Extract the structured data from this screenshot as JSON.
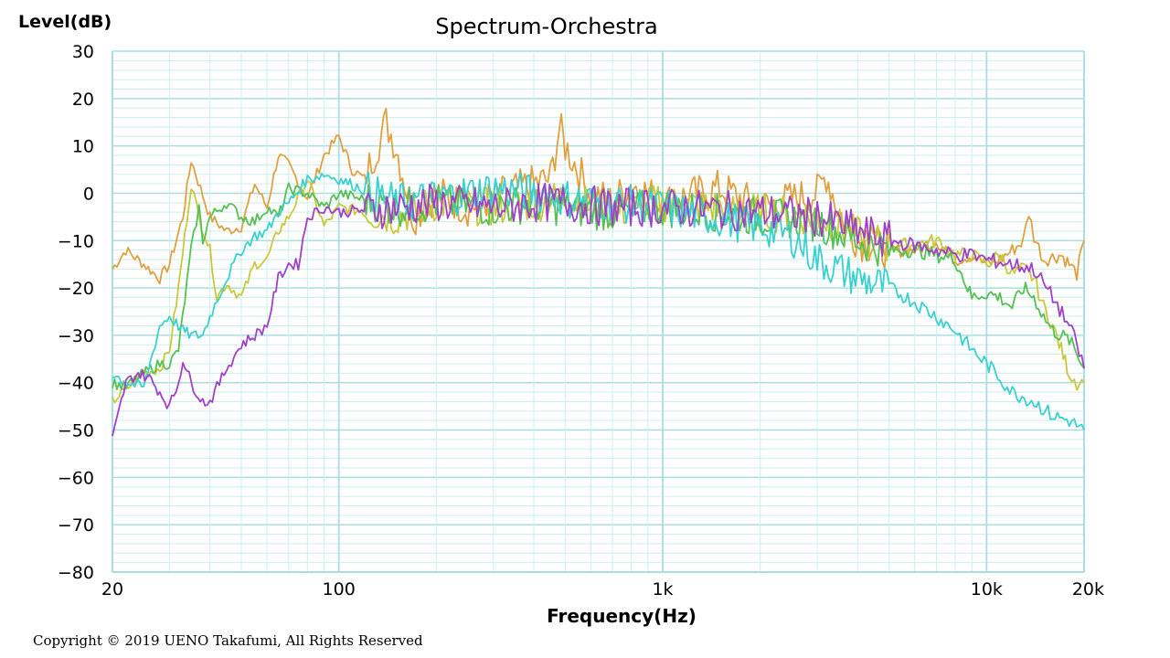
{
  "chart_data": {
    "type": "line",
    "title": "Spectrum-Orchestra",
    "ylabel": "Level(dB)",
    "xlabel": "Frequency(Hz)",
    "xscale": "log",
    "xlim": [
      20,
      20000
    ],
    "ylim": [
      -80,
      30
    ],
    "y_ticks": [
      30,
      20,
      10,
      0,
      -10,
      -20,
      -30,
      -40,
      -50,
      -60,
      -70,
      -80
    ],
    "x_ticks": [
      {
        "value": 20,
        "label": "20"
      },
      {
        "value": 100,
        "label": "100"
      },
      {
        "value": 1000,
        "label": "1k"
      },
      {
        "value": 10000,
        "label": "10k"
      },
      {
        "value": 20000,
        "label": "20k"
      }
    ],
    "grid": true,
    "legend": "none",
    "colors": {
      "grid_major": "#a8dede",
      "grid_minor": "#cdeeee",
      "axis": "#a8dede"
    },
    "series": [
      {
        "color": "#e0a040",
        "points": [
          [
            20,
            -16
          ],
          [
            22,
            -12
          ],
          [
            25,
            -15
          ],
          [
            28,
            -18
          ],
          [
            30,
            -15
          ],
          [
            33,
            -5
          ],
          [
            35,
            7
          ],
          [
            40,
            -5
          ],
          [
            45,
            -8
          ],
          [
            50,
            -7
          ],
          [
            55,
            2
          ],
          [
            60,
            -3
          ],
          [
            65,
            8
          ],
          [
            70,
            6
          ],
          [
            80,
            -1
          ],
          [
            90,
            8
          ],
          [
            100,
            12
          ],
          [
            110,
            5
          ],
          [
            120,
            3
          ],
          [
            140,
            15
          ],
          [
            150,
            10
          ],
          [
            170,
            -5
          ],
          [
            200,
            0
          ],
          [
            250,
            -3
          ],
          [
            300,
            -1
          ],
          [
            400,
            2
          ],
          [
            450,
            3
          ],
          [
            480,
            14
          ],
          [
            500,
            10
          ],
          [
            600,
            0
          ],
          [
            700,
            -2
          ],
          [
            800,
            2
          ],
          [
            1000,
            -2
          ],
          [
            1500,
            1
          ],
          [
            2000,
            -3
          ],
          [
            3000,
            0
          ],
          [
            3200,
            4
          ],
          [
            3500,
            -4
          ],
          [
            4000,
            -10
          ],
          [
            5000,
            -12
          ],
          [
            6000,
            -12
          ],
          [
            7000,
            -10
          ],
          [
            8000,
            -14
          ],
          [
            9000,
            -13
          ],
          [
            10000,
            -15
          ],
          [
            11000,
            -14
          ],
          [
            12000,
            -12
          ],
          [
            13000,
            -10
          ],
          [
            13500,
            -4
          ],
          [
            14000,
            -9
          ],
          [
            15000,
            -14
          ],
          [
            17000,
            -13
          ],
          [
            18000,
            -15
          ],
          [
            19000,
            -17
          ],
          [
            20000,
            -10
          ]
        ]
      },
      {
        "color": "#c8c83a",
        "points": [
          [
            20,
            -44
          ],
          [
            25,
            -38
          ],
          [
            28,
            -37
          ],
          [
            30,
            -33
          ],
          [
            32,
            -20
          ],
          [
            35,
            2
          ],
          [
            37,
            -5
          ],
          [
            40,
            -12
          ],
          [
            42,
            -22
          ],
          [
            45,
            -19
          ],
          [
            50,
            -22
          ],
          [
            55,
            -15
          ],
          [
            60,
            -14
          ],
          [
            65,
            -8
          ],
          [
            70,
            -5
          ],
          [
            80,
            3
          ],
          [
            90,
            -7
          ],
          [
            100,
            -3
          ],
          [
            150,
            -5
          ],
          [
            200,
            -2
          ],
          [
            300,
            -3
          ],
          [
            400,
            -2
          ],
          [
            500,
            -1
          ],
          [
            700,
            -4
          ],
          [
            1000,
            -2
          ],
          [
            2000,
            -4
          ],
          [
            3000,
            -5
          ],
          [
            4000,
            -9
          ],
          [
            5000,
            -11
          ],
          [
            6000,
            -11
          ],
          [
            7000,
            -10
          ],
          [
            8000,
            -13
          ],
          [
            9000,
            -13
          ],
          [
            10000,
            -15
          ],
          [
            11000,
            -13
          ],
          [
            12000,
            -17
          ],
          [
            13000,
            -16
          ],
          [
            14000,
            -18
          ],
          [
            15000,
            -24
          ],
          [
            16000,
            -28
          ],
          [
            17000,
            -33
          ],
          [
            18000,
            -38
          ],
          [
            19000,
            -40
          ],
          [
            20000,
            -40
          ]
        ]
      },
      {
        "color": "#55c055",
        "points": [
          [
            20,
            -40
          ],
          [
            22,
            -41
          ],
          [
            25,
            -38
          ],
          [
            28,
            -36
          ],
          [
            30,
            -36
          ],
          [
            32,
            -33
          ],
          [
            35,
            -12
          ],
          [
            37,
            -3
          ],
          [
            38,
            -10
          ],
          [
            40,
            -5
          ],
          [
            45,
            -2
          ],
          [
            50,
            -5
          ],
          [
            55,
            -6
          ],
          [
            60,
            -3
          ],
          [
            65,
            -5
          ],
          [
            70,
            1
          ],
          [
            80,
            0
          ],
          [
            90,
            -3
          ],
          [
            100,
            0
          ],
          [
            150,
            -3
          ],
          [
            200,
            -2
          ],
          [
            300,
            -3
          ],
          [
            400,
            -2
          ],
          [
            500,
            -3
          ],
          [
            700,
            -4
          ],
          [
            1000,
            -3
          ],
          [
            2000,
            -5
          ],
          [
            3000,
            -6
          ],
          [
            4000,
            -10
          ],
          [
            5000,
            -12
          ],
          [
            6000,
            -12
          ],
          [
            7000,
            -13
          ],
          [
            8000,
            -14
          ],
          [
            8500,
            -18
          ],
          [
            9000,
            -22
          ],
          [
            10000,
            -21
          ],
          [
            11000,
            -22
          ],
          [
            12000,
            -24
          ],
          [
            13000,
            -20
          ],
          [
            14000,
            -22
          ],
          [
            15000,
            -26
          ],
          [
            16000,
            -29
          ],
          [
            17000,
            -30
          ],
          [
            18000,
            -31
          ],
          [
            19000,
            -34
          ],
          [
            20000,
            -37
          ]
        ]
      },
      {
        "color": "#3ad0d0",
        "points": [
          [
            20,
            -38
          ],
          [
            22,
            -40
          ],
          [
            25,
            -41
          ],
          [
            28,
            -28
          ],
          [
            30,
            -26
          ],
          [
            33,
            -29
          ],
          [
            35,
            -30
          ],
          [
            38,
            -30
          ],
          [
            40,
            -26
          ],
          [
            45,
            -18
          ],
          [
            50,
            -12
          ],
          [
            55,
            -9
          ],
          [
            60,
            -8
          ],
          [
            65,
            -4
          ],
          [
            70,
            -2
          ],
          [
            80,
            3
          ],
          [
            90,
            4
          ],
          [
            100,
            3
          ],
          [
            150,
            -2
          ],
          [
            200,
            -1
          ],
          [
            300,
            1
          ],
          [
            400,
            0
          ],
          [
            500,
            -1
          ],
          [
            700,
            -2
          ],
          [
            1000,
            -3
          ],
          [
            2000,
            -7
          ],
          [
            2500,
            -9
          ],
          [
            3000,
            -14
          ],
          [
            4000,
            -18
          ],
          [
            5000,
            -20
          ],
          [
            6000,
            -23
          ],
          [
            7000,
            -26
          ],
          [
            8000,
            -29
          ],
          [
            9000,
            -33
          ],
          [
            10000,
            -36
          ],
          [
            11000,
            -39
          ],
          [
            12000,
            -42
          ],
          [
            14000,
            -44
          ],
          [
            16000,
            -47
          ],
          [
            18000,
            -48
          ],
          [
            20000,
            -50
          ]
        ]
      },
      {
        "color": "#a040c8",
        "points": [
          [
            20,
            -52
          ],
          [
            22,
            -40
          ],
          [
            24,
            -38
          ],
          [
            26,
            -39
          ],
          [
            28,
            -42
          ],
          [
            30,
            -45
          ],
          [
            32,
            -40
          ],
          [
            33,
            -35
          ],
          [
            35,
            -40
          ],
          [
            38,
            -44
          ],
          [
            40,
            -44
          ],
          [
            45,
            -37
          ],
          [
            50,
            -32
          ],
          [
            55,
            -30
          ],
          [
            60,
            -28
          ],
          [
            65,
            -18
          ],
          [
            70,
            -15
          ],
          [
            75,
            -15
          ],
          [
            80,
            -5
          ],
          [
            90,
            -3
          ],
          [
            100,
            -4
          ],
          [
            150,
            -3
          ],
          [
            200,
            -2
          ],
          [
            300,
            -3
          ],
          [
            400,
            -2
          ],
          [
            500,
            -2
          ],
          [
            700,
            -3
          ],
          [
            1000,
            -3
          ],
          [
            2000,
            -4
          ],
          [
            3000,
            -5
          ],
          [
            4000,
            -8
          ],
          [
            5000,
            -10
          ],
          [
            6000,
            -11
          ],
          [
            7000,
            -12
          ],
          [
            8000,
            -13
          ],
          [
            9000,
            -13
          ],
          [
            10000,
            -14
          ],
          [
            12000,
            -15
          ],
          [
            14000,
            -16
          ],
          [
            16000,
            -22
          ],
          [
            18000,
            -28
          ],
          [
            19000,
            -32
          ],
          [
            20000,
            -37
          ]
        ]
      }
    ]
  },
  "copyright": "Copyright © 2019 UENO Takafumi, All Rights Reserved"
}
